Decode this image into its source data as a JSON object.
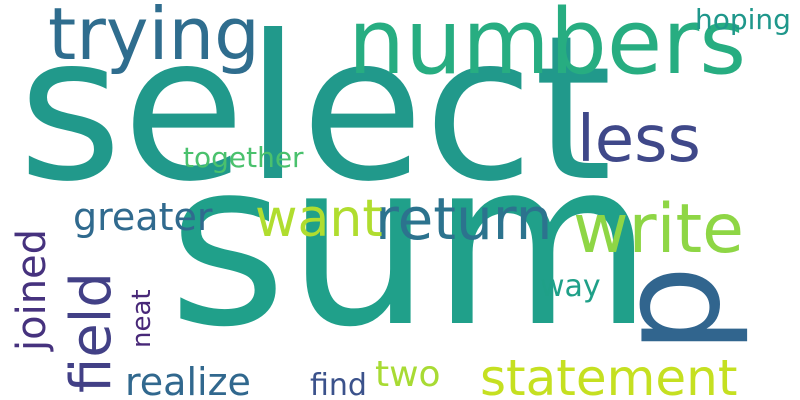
{
  "words": {
    "select": {
      "text": "select",
      "color": "#21998b"
    },
    "sum": {
      "text": "sum",
      "color": "#20a08a"
    },
    "numbers": {
      "text": "numbers",
      "color": "#27ad81"
    },
    "trying": {
      "text": "trying",
      "color": "#2f6d8e"
    },
    "p": {
      "text": "p",
      "color": "#31658e"
    },
    "less": {
      "text": "less",
      "color": "#3f4889"
    },
    "write": {
      "text": "write",
      "color": "#8ed645"
    },
    "return": {
      "text": "return",
      "color": "#2c738e"
    },
    "want": {
      "text": "want",
      "color": "#b0dd2f"
    },
    "greater": {
      "text": "greater",
      "color": "#306a8e"
    },
    "statement": {
      "text": "statement",
      "color": "#c5e021"
    },
    "together": {
      "text": "together",
      "color": "#4ac16d"
    },
    "hoping": {
      "text": "hoping",
      "color": "#1f978b"
    },
    "field": {
      "text": "field",
      "color": "#424086"
    },
    "joined": {
      "text": "joined",
      "color": "#46327e"
    },
    "realize": {
      "text": "realize",
      "color": "#31688e"
    },
    "two": {
      "text": "two",
      "color": "#a8db34"
    },
    "find": {
      "text": "find",
      "color": "#3b528b"
    },
    "way": {
      "text": "way",
      "color": "#1fa088"
    },
    "neat": {
      "text": "neat",
      "color": "#482878"
    }
  }
}
